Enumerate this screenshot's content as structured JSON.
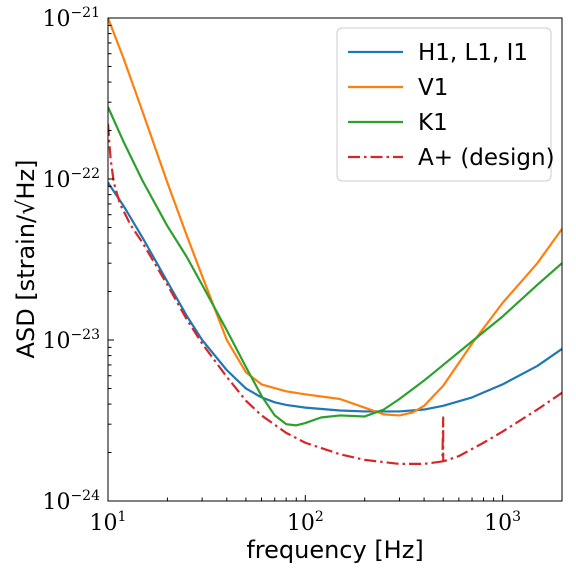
{
  "chart_data": {
    "type": "line",
    "x_scale": "log",
    "y_scale": "log",
    "xlim": [
      10,
      2000
    ],
    "ylim": [
      1e-24,
      1e-21
    ],
    "xlabel": "frequency [Hz]",
    "ylabel": "ASD [strain/√Hz]",
    "x_ticks": [
      {
        "value": 10,
        "base": "10",
        "exp": "1"
      },
      {
        "value": 100,
        "base": "10",
        "exp": "2"
      },
      {
        "value": 1000,
        "base": "10",
        "exp": "3"
      }
    ],
    "y_ticks": [
      {
        "value": 1e-24,
        "base": "10",
        "exp": "−24"
      },
      {
        "value": 1e-23,
        "base": "10",
        "exp": "−23"
      },
      {
        "value": 1e-22,
        "base": "10",
        "exp": "−22"
      },
      {
        "value": 1e-21,
        "base": "10",
        "exp": "−21"
      }
    ],
    "legend_position": "top-right",
    "grid": false,
    "series": [
      {
        "name": "H1, L1, I1",
        "color": "#1f77b4",
        "style": "solid",
        "x": [
          10,
          12,
          15,
          20,
          25,
          30,
          40,
          50,
          60,
          70,
          80,
          100,
          150,
          200,
          300,
          400,
          500,
          700,
          1000,
          1500,
          2000
        ],
        "y": [
          9.5e-23,
          6.8e-23,
          4.3e-23,
          2.3e-23,
          1.42e-23,
          1e-23,
          6.5e-24,
          5e-24,
          4.4e-24,
          4.1e-24,
          3.95e-24,
          3.8e-24,
          3.65e-24,
          3.6e-24,
          3.6e-24,
          3.7e-24,
          3.9e-24,
          4.4e-24,
          5.3e-24,
          6.9e-24,
          8.8e-24
        ]
      },
      {
        "name": "V1",
        "color": "#ff7f0e",
        "style": "solid",
        "x": [
          10,
          12,
          15,
          20,
          25,
          30,
          40,
          50,
          60,
          80,
          100,
          150,
          200,
          250,
          300,
          350,
          400,
          500,
          700,
          1000,
          1500,
          2000
        ],
        "y": [
          1e-21,
          5.6e-22,
          2.6e-22,
          9.5e-23,
          4.5e-23,
          2.5e-23,
          1e-23,
          6.3e-24,
          5.3e-24,
          4.8e-24,
          4.6e-24,
          4.3e-24,
          3.8e-24,
          3.45e-24,
          3.4e-24,
          3.55e-24,
          3.9e-24,
          5.2e-24,
          9.5e-24,
          1.7e-23,
          3e-23,
          4.9e-23
        ]
      },
      {
        "name": "K1",
        "color": "#2ca02c",
        "style": "solid",
        "x": [
          10,
          12,
          15,
          20,
          25,
          30,
          40,
          50,
          60,
          70,
          80,
          90,
          100,
          120,
          150,
          200,
          250,
          300,
          400,
          500,
          700,
          1000,
          1500,
          2000
        ],
        "y": [
          2.8e-22,
          1.7e-22,
          9.7e-23,
          5.1e-23,
          3.3e-23,
          2.2e-23,
          1.15e-23,
          6.8e-24,
          4.5e-24,
          3.4e-24,
          3e-24,
          2.95e-24,
          3.05e-24,
          3.3e-24,
          3.4e-24,
          3.35e-24,
          3.7e-24,
          4.3e-24,
          5.6e-24,
          7e-24,
          9.8e-24,
          1.4e-23,
          2.2e-23,
          3e-23
        ]
      },
      {
        "name": "A+ (design)",
        "color": "#d62728",
        "style": "dashdot",
        "x": [
          10,
          10.3,
          10.7,
          11.5,
          13,
          15,
          20,
          25,
          30,
          40,
          50,
          60,
          80,
          100,
          150,
          200,
          300,
          400,
          495,
          500,
          500,
          505,
          520,
          600,
          800,
          1000,
          1500,
          2000
        ],
        "y": [
          2.2e-22,
          1.35e-22,
          9.5e-23,
          7e-23,
          5.2e-23,
          4e-23,
          2.2e-23,
          1.35e-23,
          9.5e-24,
          5.9e-24,
          4.2e-24,
          3.4e-24,
          2.65e-24,
          2.3e-24,
          1.95e-24,
          1.8e-24,
          1.7e-24,
          1.7e-24,
          1.76e-24,
          3.3e-24,
          1.78e-24,
          1.77e-24,
          1.79e-24,
          1.9e-24,
          2.3e-24,
          2.7e-24,
          3.7e-24,
          4.7e-24
        ]
      }
    ]
  }
}
